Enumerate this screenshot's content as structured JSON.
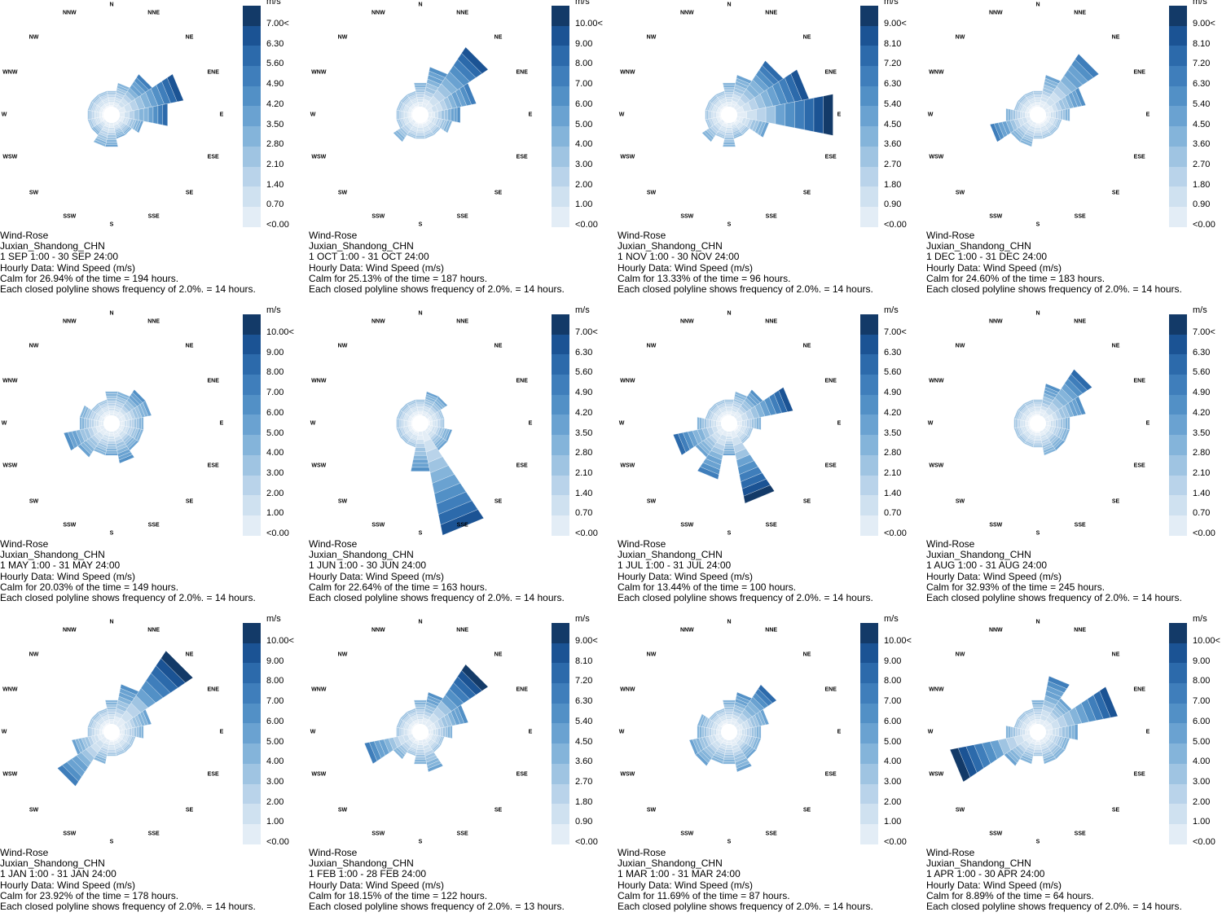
{
  "directions": [
    "N",
    "NNE",
    "NE",
    "ENE",
    "E",
    "ESE",
    "SE",
    "SSE",
    "S",
    "SSW",
    "SW",
    "WSW",
    "W",
    "WNW",
    "NW",
    "NNW"
  ],
  "unit_label": "m/s",
  "colors": [
    "#f4f7fb",
    "#e3edf6",
    "#cfe1f0",
    "#b9d3ea",
    "#9fc4e2",
    "#84b4da",
    "#6aa2d1",
    "#5290c6",
    "#3f7ebb",
    "#2c6aab",
    "#1b5394",
    "#133a68"
  ],
  "chart_data": [
    {
      "type": "wind-rose",
      "series": "Wind Speed (m/s)",
      "legend": [
        "<0.00",
        "0.70",
        "1.40",
        "2.10",
        "2.80",
        "3.50",
        "4.20",
        "4.90",
        "5.60",
        "6.30",
        "7.00<"
      ],
      "caption": [
        "Wind-Rose",
        "Juxian_Shandong_CHN",
        "1 SEP 1:00 - 30 SEP 24:00",
        "Hourly Data: Wind Speed (m/s)",
        "Calm for 26.94% of the time = 194 hours.",
        "Each closed polyline shows frequency of 2.0%. = 14 hours."
      ],
      "frequencies": [
        2,
        3,
        5,
        8,
        6,
        3,
        2,
        2,
        3,
        3,
        2,
        2,
        2,
        2,
        2,
        2
      ],
      "intensity": [
        2,
        3,
        6,
        8,
        7,
        4,
        3,
        4,
        4,
        3,
        3,
        2,
        2,
        2,
        2,
        2
      ]
    },
    {
      "type": "wind-rose",
      "series": "Wind Speed (m/s)",
      "legend": [
        "<0.00",
        "1.00",
        "2.00",
        "3.00",
        "4.00",
        "5.00",
        "6.00",
        "7.00",
        "8.00",
        "9.00",
        "10.00<"
      ],
      "caption": [
        "Wind-Rose",
        "Juxian_Shandong_CHN",
        "1 OCT 1:00 - 31 OCT 24:00",
        "Hourly Data: Wind Speed (m/s)",
        "Calm for 25.13% of the time = 187 hours.",
        "Each closed polyline shows frequency of 2.0%. = 14 hours."
      ],
      "frequencies": [
        3,
        5,
        9,
        6,
        4,
        3,
        2,
        2,
        2,
        2,
        3,
        2,
        2,
        2,
        2,
        2
      ],
      "intensity": [
        3,
        5,
        8,
        6,
        5,
        3,
        2,
        2,
        2,
        2,
        3,
        2,
        2,
        2,
        2,
        2
      ]
    },
    {
      "type": "wind-rose",
      "series": "Wind Speed (m/s)",
      "legend": [
        "<0.00",
        "0.90",
        "1.80",
        "2.70",
        "3.60",
        "4.50",
        "5.40",
        "6.30",
        "7.20",
        "8.10",
        "9.00<"
      ],
      "caption": [
        "Wind-Rose",
        "Juxian_Shandong_CHN",
        "1 NOV 1:00 - 30 NOV 24:00",
        "Hourly Data: Wind Speed (m/s)",
        "Calm for 13.33% of the time = 96 hours.",
        "Each closed polyline shows frequency of 2.0%. = 14 hours."
      ],
      "frequencies": [
        3,
        4,
        7,
        9,
        12,
        4,
        2,
        2,
        3,
        2,
        3,
        2,
        2,
        2,
        2,
        2
      ],
      "intensity": [
        3,
        4,
        7,
        8,
        10,
        4,
        2,
        3,
        3,
        2,
        3,
        2,
        2,
        2,
        2,
        2
      ]
    },
    {
      "type": "wind-rose",
      "series": "Wind Speed (m/s)",
      "legend": [
        "<0.00",
        "0.90",
        "1.80",
        "2.70",
        "3.60",
        "4.50",
        "5.40",
        "6.30",
        "7.20",
        "8.10",
        "9.00<"
      ],
      "caption": [
        "Wind-Rose",
        "Juxian_Shandong_CHN",
        "1 DEC 1:00 - 31 DEC 24:00",
        "Hourly Data: Wind Speed (m/s)",
        "Calm for 24.60% of the time = 183 hours.",
        "Each closed polyline shows frequency of 2.0%. = 14 hours."
      ],
      "frequencies": [
        2,
        4,
        8,
        5,
        3,
        2,
        2,
        2,
        2,
        3,
        3,
        5,
        3,
        2,
        2,
        2
      ],
      "intensity": [
        2,
        4,
        6,
        5,
        3,
        2,
        2,
        2,
        2,
        3,
        3,
        6,
        3,
        2,
        2,
        2
      ]
    },
    {
      "type": "wind-rose",
      "series": "Wind Speed (m/s)",
      "legend": [
        "<0.00",
        "1.00",
        "2.00",
        "3.00",
        "4.00",
        "5.00",
        "6.00",
        "7.00",
        "8.00",
        "9.00",
        "10.00<"
      ],
      "caption": [
        "Wind-Rose",
        "Juxian_Shandong_CHN",
        "1 MAY 1:00 - 31 MAY 24:00",
        "Hourly Data: Wind Speed (m/s)",
        "Calm for 20.03% of the time = 149 hours.",
        "Each closed polyline shows frequency of 2.0%. = 14 hours."
      ],
      "frequencies": [
        3,
        3,
        4,
        4,
        3,
        3,
        3,
        4,
        3,
        3,
        4,
        5,
        3,
        3,
        2,
        2
      ],
      "intensity": [
        3,
        3,
        5,
        4,
        3,
        3,
        4,
        5,
        4,
        3,
        4,
        5,
        3,
        3,
        2,
        2
      ]
    },
    {
      "type": "wind-rose",
      "series": "Wind Speed (m/s)",
      "legend": [
        "<0.00",
        "0.70",
        "1.40",
        "2.10",
        "2.80",
        "3.50",
        "4.20",
        "4.90",
        "5.60",
        "6.30",
        "7.00<"
      ],
      "caption": [
        "Wind-Rose",
        "Juxian_Shandong_CHN",
        "1 JUN 1:00 - 30 JUN 24:00",
        "Hourly Data: Wind Speed (m/s)",
        "Calm for 22.64% of the time = 163 hours.",
        "Each closed polyline shows frequency of 2.0%. = 14 hours."
      ],
      "frequencies": [
        2,
        3,
        3,
        2,
        2,
        3,
        3,
        13,
        5,
        2,
        2,
        2,
        2,
        2,
        2,
        2
      ],
      "intensity": [
        2,
        4,
        4,
        2,
        2,
        4,
        4,
        8,
        5,
        2,
        2,
        2,
        2,
        2,
        2,
        2
      ]
    },
    {
      "type": "wind-rose",
      "series": "Wind Speed (m/s)",
      "legend": [
        "<0.00",
        "0.70",
        "1.40",
        "2.10",
        "2.80",
        "3.50",
        "4.20",
        "4.90",
        "5.60",
        "6.30",
        "7.00<"
      ],
      "caption": [
        "Wind-Rose",
        "Juxian_Shandong_CHN",
        "1 JUL 1:00 - 31 JUL 24:00",
        "Hourly Data: Wind Speed (m/s)",
        "Calm for 13.44% of the time = 100 hours.",
        "Each closed polyline shows frequency of 2.0%. = 14 hours."
      ],
      "frequencies": [
        2,
        3,
        4,
        7,
        3,
        2,
        2,
        9,
        3,
        6,
        4,
        6,
        3,
        2,
        2,
        2
      ],
      "intensity": [
        2,
        3,
        5,
        8,
        3,
        2,
        2,
        9,
        4,
        6,
        4,
        7,
        3,
        2,
        2,
        2
      ]
    },
    {
      "type": "wind-rose",
      "series": "Wind Speed (m/s)",
      "legend": [
        "<0.00",
        "0.70",
        "1.40",
        "2.10",
        "2.80",
        "3.50",
        "4.20",
        "4.90",
        "5.60",
        "6.30",
        "7.00<"
      ],
      "caption": [
        "Wind-Rose",
        "Juxian_Shandong_CHN",
        "1 AUG 1:00 - 31 AUG 24:00",
        "Hourly Data: Wind Speed (m/s)",
        "Calm for 32.93% of the time = 245 hours.",
        "Each closed polyline shows frequency of 2.0%. = 14 hours."
      ],
      "frequencies": [
        2,
        4,
        7,
        5,
        3,
        3,
        3,
        3,
        2,
        2,
        2,
        2,
        2,
        2,
        2,
        2
      ],
      "intensity": [
        2,
        5,
        7,
        5,
        3,
        3,
        4,
        3,
        2,
        2,
        2,
        2,
        2,
        2,
        2,
        2
      ]
    },
    {
      "type": "wind-rose",
      "series": "Wind Speed (m/s)",
      "legend": [
        "<0.00",
        "1.00",
        "2.00",
        "3.00",
        "4.00",
        "5.00",
        "6.00",
        "7.00",
        "8.00",
        "9.00",
        "10.00<"
      ],
      "caption": [
        "Wind-Rose",
        "Juxian_Shandong_CHN",
        "1 JAN 1:00 - 31 JAN 24:00",
        "Hourly Data: Wind Speed (m/s)",
        "Calm for 23.92% of the time = 178 hours.",
        "Each closed polyline shows frequency of 2.0%. = 14 hours."
      ],
      "frequencies": [
        3,
        5,
        11,
        4,
        3,
        2,
        2,
        2,
        2,
        3,
        7,
        4,
        2,
        2,
        2,
        2
      ],
      "intensity": [
        3,
        5,
        10,
        4,
        3,
        2,
        2,
        2,
        2,
        3,
        6,
        4,
        2,
        2,
        2,
        2
      ]
    },
    {
      "type": "wind-rose",
      "series": "Wind Speed (m/s)",
      "legend": [
        "<0.00",
        "0.90",
        "1.80",
        "2.70",
        "3.60",
        "4.50",
        "5.40",
        "6.30",
        "7.20",
        "8.10",
        "9.00<"
      ],
      "caption": [
        "Wind-Rose",
        "Juxian_Shandong_CHN",
        "1 FEB 1:00 - 28 FEB 24:00",
        "Hourly Data: Wind Speed (m/s)",
        "Calm for 18.15% of the time = 122 hours.",
        "Each closed polyline shows frequency of 2.0%. = 13 hours."
      ],
      "frequencies": [
        3,
        4,
        9,
        5,
        3,
        2,
        2,
        4,
        3,
        2,
        3,
        6,
        2,
        2,
        2,
        2
      ],
      "intensity": [
        3,
        5,
        9,
        5,
        3,
        2,
        2,
        4,
        3,
        2,
        3,
        6,
        2,
        2,
        2,
        2
      ]
    },
    {
      "type": "wind-rose",
      "series": "Wind Speed (m/s)",
      "legend": [
        "<0.00",
        "1.00",
        "2.00",
        "3.00",
        "4.00",
        "5.00",
        "6.00",
        "7.00",
        "8.00",
        "9.00",
        "10.00<"
      ],
      "caption": [
        "Wind-Rose",
        "Juxian_Shandong_CHN",
        "1 MAR 1:00 - 31 MAR 24:00",
        "Hourly Data: Wind Speed (m/s)",
        "Calm for 11.69% of the time = 87 hours.",
        "Each closed polyline shows frequency of 2.0%. = 14 hours."
      ],
      "frequencies": [
        3,
        4,
        6,
        4,
        3,
        3,
        3,
        4,
        3,
        3,
        4,
        4,
        3,
        3,
        2,
        2
      ],
      "intensity": [
        3,
        5,
        7,
        4,
        3,
        3,
        4,
        4,
        3,
        3,
        4,
        4,
        3,
        3,
        2,
        2
      ]
    },
    {
      "type": "wind-rose",
      "series": "Wind Speed (m/s)",
      "legend": [
        "<0.00",
        "1.00",
        "2.00",
        "3.00",
        "4.00",
        "5.00",
        "6.00",
        "7.00",
        "8.00",
        "9.00",
        "10.00<"
      ],
      "caption": [
        "Wind-Rose",
        "Juxian_Shandong_CHN",
        "1 APR 1:00 - 30 APR 24:00",
        "Hourly Data: Wind Speed (m/s)",
        "Calm for 8.89% of the time = 64 hours.",
        "Each closed polyline shows frequency of 2.0%. = 14 hours."
      ],
      "frequencies": [
        3,
        6,
        4,
        9,
        4,
        3,
        3,
        3,
        2,
        3,
        4,
        10,
        3,
        2,
        2,
        2
      ],
      "intensity": [
        3,
        6,
        4,
        8,
        4,
        3,
        3,
        3,
        2,
        3,
        4,
        9,
        3,
        2,
        2,
        2
      ]
    }
  ]
}
